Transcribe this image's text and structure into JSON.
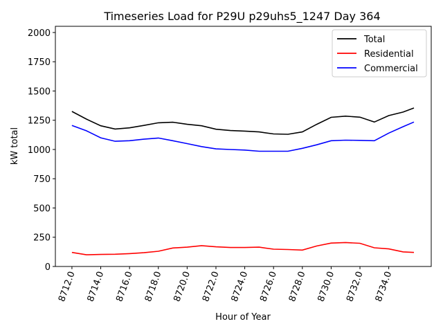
{
  "chart_data": {
    "type": "line",
    "title": "Timeseries Load for P29U p29uhs5_1247  Day 364",
    "xlabel": "Hour of Year",
    "ylabel": "kW total",
    "xlim": [
      8710.85,
      8736.95
    ],
    "ylim": [
      0,
      2053
    ],
    "xticks": [
      8712,
      8714,
      8716,
      8718,
      8720,
      8722,
      8724,
      8726,
      8728,
      8730,
      8732,
      8734
    ],
    "xtick_labels": [
      "8712.0",
      "8714.0",
      "8716.0",
      "8718.0",
      "8720.0",
      "8722.0",
      "8724.0",
      "8726.0",
      "8728.0",
      "8730.0",
      "8732.0",
      "8734.0"
    ],
    "yticks": [
      0,
      250,
      500,
      750,
      1000,
      1250,
      1500,
      1750,
      2000
    ],
    "ytick_labels": [
      "0",
      "250",
      "500",
      "750",
      "1000",
      "1250",
      "1500",
      "1750",
      "2000"
    ],
    "legend_placement": "top-right",
    "grid": false,
    "x": [
      8712,
      8713,
      8714,
      8715,
      8716,
      8717,
      8718,
      8719,
      8720,
      8721,
      8722,
      8723,
      8724,
      8725,
      8726,
      8727,
      8728,
      8729,
      8730,
      8731,
      8732,
      8733,
      8734,
      8735,
      8735.75
    ],
    "series": [
      {
        "name": "Total",
        "color": "#000000",
        "values": [
          1325,
          1260,
          1203,
          1175,
          1185,
          1206,
          1228,
          1233,
          1215,
          1203,
          1173,
          1162,
          1157,
          1150,
          1133,
          1130,
          1150,
          1215,
          1275,
          1285,
          1276,
          1235,
          1290,
          1320,
          1355
        ]
      },
      {
        "name": "Residential",
        "color": "#ff0000",
        "values": [
          120,
          100,
          103,
          105,
          110,
          118,
          130,
          158,
          165,
          178,
          168,
          162,
          162,
          165,
          148,
          145,
          140,
          175,
          200,
          205,
          198,
          160,
          150,
          125,
          120
        ]
      },
      {
        "name": "Commercial",
        "color": "#0000ff",
        "values": [
          1205,
          1160,
          1100,
          1070,
          1075,
          1088,
          1098,
          1075,
          1050,
          1025,
          1005,
          1000,
          995,
          985,
          985,
          985,
          1010,
          1040,
          1075,
          1080,
          1078,
          1075,
          1140,
          1195,
          1235
        ]
      }
    ]
  }
}
